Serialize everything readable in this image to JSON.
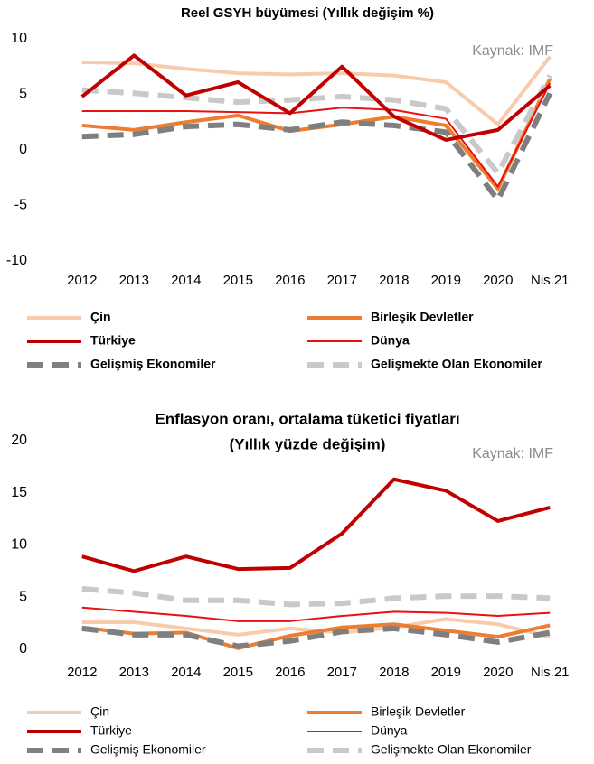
{
  "chart_data": [
    {
      "type": "line",
      "title": "Reel GSYH büyümesi (Yıllık değişim %)",
      "annotation": "Kaynak: IMF",
      "categories": [
        "2012",
        "2013",
        "2014",
        "2015",
        "2016",
        "2017",
        "2018",
        "2019",
        "2020",
        "Nis.21"
      ],
      "ylim": [
        -10,
        10
      ],
      "yticks": [
        -10,
        -5,
        0,
        5,
        10
      ],
      "grid": false,
      "legend": "bottom",
      "series": [
        {
          "name": "Çin",
          "color": "#f8cbad",
          "values": [
            7.9,
            7.8,
            7.3,
            6.9,
            6.8,
            6.9,
            6.7,
            6.1,
            2.3,
            8.4
          ]
        },
        {
          "name": "Birleşik Devletler",
          "color": "#ed7d31",
          "values": [
            2.2,
            1.8,
            2.5,
            3.1,
            1.7,
            2.3,
            3.0,
            2.2,
            -3.5,
            6.4
          ]
        },
        {
          "name": "Türkiye",
          "color": "#c00000",
          "values": [
            4.8,
            8.5,
            4.9,
            6.1,
            3.3,
            7.5,
            3.0,
            0.9,
            1.8,
            5.8
          ]
        },
        {
          "name": "Dünya",
          "color": "#e81010",
          "values": [
            3.5,
            3.5,
            3.5,
            3.4,
            3.3,
            3.8,
            3.6,
            2.8,
            -3.3,
            6.0
          ]
        },
        {
          "name": "Gelişmiş Ekonomiler",
          "color": "#7f7f7f",
          "dashed": true,
          "values": [
            1.2,
            1.4,
            2.1,
            2.3,
            1.8,
            2.5,
            2.2,
            1.6,
            -4.5,
            5.1
          ]
        },
        {
          "name": "Gelişmekte Olan Ekonomiler",
          "color": "#c9c9c9",
          "dashed": true,
          "values": [
            5.4,
            5.1,
            4.7,
            4.3,
            4.5,
            4.8,
            4.5,
            3.7,
            -2.1,
            6.7
          ]
        }
      ]
    },
    {
      "type": "line",
      "title": "Enflasyon oranı, ortalama tüketici fiyatları",
      "subtitle": "(Yıllık yüzde değişim)",
      "annotation": "Kaynak: IMF",
      "categories": [
        "2012",
        "2013",
        "2014",
        "2015",
        "2016",
        "2017",
        "2018",
        "2019",
        "2020",
        "Nis.21"
      ],
      "ylim": [
        0,
        20
      ],
      "yticks": [
        0,
        5,
        10,
        15,
        20
      ],
      "grid": false,
      "legend": "bottom",
      "series": [
        {
          "name": "Çin",
          "color": "#f8cbad",
          "values": [
            2.6,
            2.6,
            2.0,
            1.4,
            2.0,
            1.6,
            2.1,
            2.9,
            2.4,
            1.2
          ]
        },
        {
          "name": "Birleşik Devletler",
          "color": "#ed7d31",
          "values": [
            2.1,
            1.5,
            1.6,
            0.1,
            1.3,
            2.1,
            2.4,
            1.8,
            1.2,
            2.3
          ]
        },
        {
          "name": "Türkiye",
          "color": "#c00000",
          "values": [
            8.9,
            7.5,
            8.9,
            7.7,
            7.8,
            11.1,
            16.3,
            15.2,
            12.3,
            13.6
          ]
        },
        {
          "name": "Dünya",
          "color": "#e81010",
          "values": [
            4.0,
            3.6,
            3.2,
            2.7,
            2.7,
            3.2,
            3.6,
            3.5,
            3.2,
            3.5
          ]
        },
        {
          "name": "Gelişmiş Ekonomiler",
          "color": "#7f7f7f",
          "dashed": true,
          "values": [
            2.0,
            1.4,
            1.4,
            0.3,
            0.8,
            1.7,
            2.0,
            1.4,
            0.7,
            1.6
          ]
        },
        {
          "name": "Gelişmekte Olan Ekonomiler",
          "color": "#c9c9c9",
          "dashed": true,
          "values": [
            5.8,
            5.4,
            4.7,
            4.7,
            4.3,
            4.4,
            4.9,
            5.1,
            5.1,
            4.9
          ]
        }
      ]
    }
  ]
}
